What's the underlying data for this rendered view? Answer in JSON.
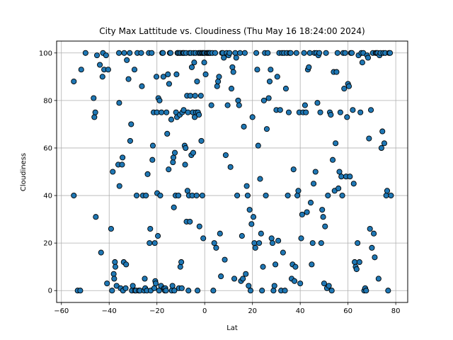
{
  "chart_data": {
    "type": "scatter",
    "title": "City Max Lattitude vs. Cloudiness (Thu May 16 18:24:00 2024)",
    "xlabel": "Lat",
    "ylabel": "Cloudiness",
    "xlim": [
      -62,
      85
    ],
    "ylim": [
      -5,
      105
    ],
    "xticks": [
      -60,
      -40,
      -20,
      0,
      20,
      40,
      60,
      80
    ],
    "yticks": [
      0,
      20,
      40,
      60,
      80,
      100
    ],
    "grid": true,
    "marker_color": "#1f77b4",
    "marker_edge_color": "#000000",
    "points": [
      [
        -54.8,
        88
      ],
      [
        -54.8,
        40
      ],
      [
        -53.2,
        0
      ],
      [
        -52.1,
        0
      ],
      [
        -51.7,
        93
      ],
      [
        -49.9,
        100
      ],
      [
        -46.5,
        81
      ],
      [
        -46.2,
        73
      ],
      [
        -45.8,
        75
      ],
      [
        -45.6,
        31
      ],
      [
        -45.1,
        99
      ],
      [
        -43.9,
        95
      ],
      [
        -43.4,
        16
      ],
      [
        -42.8,
        90
      ],
      [
        -42.6,
        100
      ],
      [
        -42.1,
        93
      ],
      [
        -41.3,
        99
      ],
      [
        -40.4,
        93
      ],
      [
        -40.9,
        3
      ],
      [
        -39.2,
        26
      ],
      [
        -38.8,
        0
      ],
      [
        -38.5,
        50
      ],
      [
        -38.1,
        7
      ],
      [
        -37.9,
        5
      ],
      [
        -37.6,
        12
      ],
      [
        -37.4,
        10
      ],
      [
        -36.9,
        2
      ],
      [
        -36.2,
        53
      ],
      [
        -35.9,
        100
      ],
      [
        -35.8,
        79
      ],
      [
        -35.7,
        44
      ],
      [
        -35.2,
        1
      ],
      [
        -34.6,
        53
      ],
      [
        -34.4,
        56
      ],
      [
        -34.2,
        0
      ],
      [
        -33.9,
        12
      ],
      [
        -33.7,
        100
      ],
      [
        -33.1,
        1
      ],
      [
        -32.9,
        11
      ],
      [
        -32.6,
        97
      ],
      [
        -31.9,
        89
      ],
      [
        -31.4,
        100
      ],
      [
        -31.2,
        63
      ],
      [
        -30.8,
        70
      ],
      [
        -30.5,
        0
      ],
      [
        -30.1,
        2
      ],
      [
        -29.4,
        93
      ],
      [
        -29.2,
        0
      ],
      [
        -28.8,
        0
      ],
      [
        -28.5,
        40
      ],
      [
        -28.2,
        100
      ],
      [
        -27.6,
        0
      ],
      [
        -27.1,
        0
      ],
      [
        -26.6,
        100
      ],
      [
        -26.3,
        86
      ],
      [
        -25.9,
        40
      ],
      [
        -25.4,
        0
      ],
      [
        -25.1,
        5
      ],
      [
        -24.9,
        1
      ],
      [
        -24.6,
        40
      ],
      [
        -24.2,
        0
      ],
      [
        -23.9,
        49
      ],
      [
        -23.4,
        100
      ],
      [
        -23.1,
        20
      ],
      [
        -22.8,
        26
      ],
      [
        -22.6,
        0
      ],
      [
        -22.2,
        100
      ],
      [
        -21.9,
        55
      ],
      [
        -21.7,
        61
      ],
      [
        -21.4,
        75
      ],
      [
        -21.1,
        1
      ],
      [
        -20.9,
        20
      ],
      [
        -20.7,
        4
      ],
      [
        -20.5,
        3
      ],
      [
        -20.2,
        90
      ],
      [
        -20.0,
        75
      ],
      [
        -19.9,
        41
      ],
      [
        -19.6,
        23
      ],
      [
        -19.4,
        81
      ],
      [
        -19.1,
        0
      ],
      [
        -18.9,
        80
      ],
      [
        -18.6,
        40
      ],
      [
        -18.3,
        2
      ],
      [
        -18.1,
        75
      ],
      [
        -17.8,
        100
      ],
      [
        -17.5,
        100
      ],
      [
        -17.3,
        90
      ],
      [
        -17.0,
        1
      ],
      [
        -16.7,
        0
      ],
      [
        -16.5,
        1
      ],
      [
        -16.2,
        0
      ],
      [
        -16.0,
        75
      ],
      [
        -15.7,
        66
      ],
      [
        -15.4,
        91
      ],
      [
        -15.1,
        51
      ],
      [
        -14.9,
        87
      ],
      [
        -14.6,
        100
      ],
      [
        -14.3,
        100
      ],
      [
        -14.0,
        72
      ],
      [
        -13.8,
        0
      ],
      [
        -13.5,
        2
      ],
      [
        -13.3,
        54
      ],
      [
        -13.1,
        56
      ],
      [
        -12.9,
        35
      ],
      [
        -12.7,
        0
      ],
      [
        -12.5,
        58
      ],
      [
        -12.2,
        40
      ],
      [
        -12.0,
        75
      ],
      [
        -11.8,
        91
      ],
      [
        -11.6,
        73
      ],
      [
        -11.4,
        100
      ],
      [
        -11.2,
        100
      ],
      [
        -11.0,
        40
      ],
      [
        -10.8,
        1
      ],
      [
        -10.6,
        100
      ],
      [
        -10.4,
        74
      ],
      [
        -10.2,
        10
      ],
      [
        -10.0,
        100
      ],
      [
        -9.8,
        12
      ],
      [
        -9.6,
        1
      ],
      [
        -9.4,
        75
      ],
      [
        -9.2,
        100
      ],
      [
        -9.0,
        100
      ],
      [
        -8.8,
        76
      ],
      [
        -8.6,
        100
      ],
      [
        -8.4,
        61
      ],
      [
        -8.2,
        53
      ],
      [
        -8.0,
        60
      ],
      [
        -7.8,
        100
      ],
      [
        -7.6,
        29
      ],
      [
        -7.4,
        82
      ],
      [
        -7.2,
        42
      ],
      [
        -7.0,
        75
      ],
      [
        -6.8,
        0
      ],
      [
        -6.6,
        40
      ],
      [
        -6.4,
        100
      ],
      [
        -6.2,
        29
      ],
      [
        -6.0,
        82
      ],
      [
        -5.8,
        100
      ],
      [
        -5.6,
        57
      ],
      [
        -5.4,
        94
      ],
      [
        -5.2,
        40
      ],
      [
        -5.0,
        75
      ],
      [
        -4.8,
        58
      ],
      [
        -4.6,
        100
      ],
      [
        -4.4,
        96
      ],
      [
        -4.2,
        73
      ],
      [
        -4.0,
        82
      ],
      [
        -3.8,
        100
      ],
      [
        -3.6,
        75
      ],
      [
        -3.4,
        40
      ],
      [
        -3.2,
        88
      ],
      [
        -3.0,
        0
      ],
      [
        -2.8,
        75
      ],
      [
        -2.6,
        100
      ],
      [
        -2.4,
        74
      ],
      [
        -2.2,
        27
      ],
      [
        -2.0,
        100
      ],
      [
        -1.8,
        100
      ],
      [
        -1.6,
        82
      ],
      [
        -1.4,
        63
      ],
      [
        -1.2,
        100
      ],
      [
        -1.0,
        40
      ],
      [
        -0.8,
        100
      ],
      [
        -0.6,
        22
      ],
      [
        -0.4,
        100
      ],
      [
        -0.2,
        96
      ],
      [
        0.0,
        100
      ],
      [
        0.4,
        91
      ],
      [
        0.8,
        100
      ],
      [
        1.2,
        100
      ],
      [
        1.6,
        100
      ],
      [
        2.0,
        100
      ],
      [
        2.4,
        100
      ],
      [
        2.8,
        78
      ],
      [
        3.2,
        100
      ],
      [
        3.6,
        0
      ],
      [
        4.0,
        20
      ],
      [
        4.4,
        100
      ],
      [
        4.8,
        18
      ],
      [
        5.2,
        86
      ],
      [
        5.6,
        88
      ],
      [
        6.0,
        90
      ],
      [
        6.4,
        24
      ],
      [
        6.8,
        6
      ],
      [
        7.2,
        100
      ],
      [
        7.6,
        100
      ],
      [
        8.0,
        98
      ],
      [
        8.4,
        13
      ],
      [
        8.8,
        57
      ],
      [
        9.2,
        100
      ],
      [
        9.6,
        78
      ],
      [
        10.0,
        99
      ],
      [
        10.4,
        100
      ],
      [
        10.8,
        52
      ],
      [
        11.2,
        85
      ],
      [
        11.6,
        94
      ],
      [
        12.0,
        92
      ],
      [
        12.4,
        5
      ],
      [
        12.8,
        100
      ],
      [
        13.2,
        98
      ],
      [
        13.6,
        40
      ],
      [
        14.0,
        80
      ],
      [
        14.4,
        78
      ],
      [
        14.8,
        100
      ],
      [
        15.2,
        4
      ],
      [
        15.6,
        23
      ],
      [
        16.0,
        5
      ],
      [
        16.4,
        69
      ],
      [
        16.8,
        100
      ],
      [
        17.2,
        7
      ],
      [
        17.6,
        44
      ],
      [
        18.0,
        40
      ],
      [
        18.4,
        2
      ],
      [
        18.8,
        34
      ],
      [
        19.2,
        0
      ],
      [
        19.6,
        28
      ],
      [
        20.0,
        73
      ],
      [
        20.4,
        31
      ],
      [
        20.8,
        20
      ],
      [
        21.2,
        18
      ],
      [
        21.6,
        100
      ],
      [
        22.0,
        93
      ],
      [
        22.4,
        61
      ],
      [
        22.8,
        20
      ],
      [
        23.2,
        47
      ],
      [
        23.6,
        24
      ],
      [
        24.0,
        0
      ],
      [
        24.4,
        10
      ],
      [
        24.8,
        80
      ],
      [
        25.2,
        100
      ],
      [
        25.6,
        40
      ],
      [
        26.0,
        68
      ],
      [
        26.4,
        100
      ],
      [
        26.8,
        81
      ],
      [
        27.2,
        88
      ],
      [
        27.6,
        93
      ],
      [
        28.0,
        22
      ],
      [
        28.4,
        20
      ],
      [
        28.8,
        0
      ],
      [
        29.2,
        2
      ],
      [
        29.6,
        11
      ],
      [
        30.0,
        76
      ],
      [
        30.4,
        90
      ],
      [
        30.8,
        21
      ],
      [
        31.2,
        100
      ],
      [
        31.6,
        76
      ],
      [
        32.0,
        0
      ],
      [
        32.4,
        100
      ],
      [
        32.8,
        16
      ],
      [
        33.2,
        100
      ],
      [
        33.6,
        0
      ],
      [
        34.0,
        85
      ],
      [
        34.4,
        100
      ],
      [
        34.8,
        40
      ],
      [
        35.2,
        75
      ],
      [
        35.6,
        100
      ],
      [
        36.0,
        100
      ],
      [
        36.4,
        5
      ],
      [
        36.8,
        11
      ],
      [
        37.2,
        51
      ],
      [
        37.6,
        4
      ],
      [
        38.0,
        10
      ],
      [
        38.4,
        100
      ],
      [
        38.8,
        40
      ],
      [
        39.2,
        42
      ],
      [
        39.6,
        75
      ],
      [
        40.0,
        3
      ],
      [
        40.4,
        22
      ],
      [
        40.8,
        32
      ],
      [
        41.2,
        75
      ],
      [
        41.6,
        100
      ],
      [
        42.0,
        78
      ],
      [
        42.4,
        75
      ],
      [
        42.8,
        33
      ],
      [
        43.2,
        93
      ],
      [
        43.6,
        94
      ],
      [
        44.0,
        100
      ],
      [
        44.4,
        37
      ],
      [
        44.8,
        11
      ],
      [
        45.2,
        20
      ],
      [
        45.6,
        45
      ],
      [
        46.0,
        100
      ],
      [
        46.4,
        50
      ],
      [
        46.8,
        100
      ],
      [
        47.2,
        79
      ],
      [
        47.6,
        99
      ],
      [
        48.0,
        100
      ],
      [
        48.4,
        75
      ],
      [
        48.8,
        20
      ],
      [
        49.2,
        34
      ],
      [
        49.6,
        31
      ],
      [
        50.0,
        3
      ],
      [
        50.4,
        27
      ],
      [
        50.8,
        100
      ],
      [
        51.2,
        1
      ],
      [
        51.6,
        40
      ],
      [
        52.0,
        2
      ],
      [
        52.4,
        75
      ],
      [
        52.8,
        74
      ],
      [
        53.2,
        0
      ],
      [
        53.6,
        55
      ],
      [
        54.0,
        92
      ],
      [
        54.4,
        42
      ],
      [
        54.8,
        62
      ],
      [
        55.2,
        92
      ],
      [
        55.6,
        100
      ],
      [
        56.0,
        43
      ],
      [
        56.4,
        50
      ],
      [
        56.8,
        75
      ],
      [
        57.2,
        48
      ],
      [
        57.6,
        40
      ],
      [
        58.0,
        100
      ],
      [
        58.4,
        85
      ],
      [
        58.8,
        100
      ],
      [
        59.2,
        48
      ],
      [
        59.6,
        73
      ],
      [
        60.0,
        87
      ],
      [
        60.4,
        86
      ],
      [
        60.8,
        48
      ],
      [
        61.2,
        100
      ],
      [
        61.6,
        100
      ],
      [
        62.0,
        76
      ],
      [
        62.4,
        45
      ],
      [
        62.8,
        12
      ],
      [
        63.2,
        10
      ],
      [
        63.6,
        9
      ],
      [
        64.0,
        20
      ],
      [
        64.4,
        99
      ],
      [
        64.8,
        12
      ],
      [
        65.2,
        75
      ],
      [
        65.6,
        100
      ],
      [
        66.0,
        96
      ],
      [
        66.4,
        100
      ],
      [
        66.8,
        0
      ],
      [
        67.2,
        1
      ],
      [
        67.6,
        0
      ],
      [
        68.0,
        99
      ],
      [
        68.4,
        98
      ],
      [
        68.8,
        64
      ],
      [
        69.2,
        26
      ],
      [
        69.6,
        76
      ],
      [
        70.0,
        18
      ],
      [
        70.4,
        100
      ],
      [
        70.8,
        24
      ],
      [
        71.2,
        14
      ],
      [
        71.6,
        100
      ],
      [
        72.0,
        100
      ],
      [
        72.4,
        100
      ],
      [
        72.8,
        5
      ],
      [
        73.2,
        99
      ],
      [
        73.6,
        100
      ],
      [
        74.0,
        60
      ],
      [
        74.4,
        67
      ],
      [
        74.8,
        100
      ],
      [
        75.2,
        62
      ],
      [
        75.6,
        100
      ],
      [
        76.0,
        40
      ],
      [
        76.4,
        42
      ],
      [
        76.8,
        0
      ],
      [
        77.2,
        100
      ],
      [
        77.6,
        100
      ],
      [
        78.0,
        40
      ]
    ]
  }
}
